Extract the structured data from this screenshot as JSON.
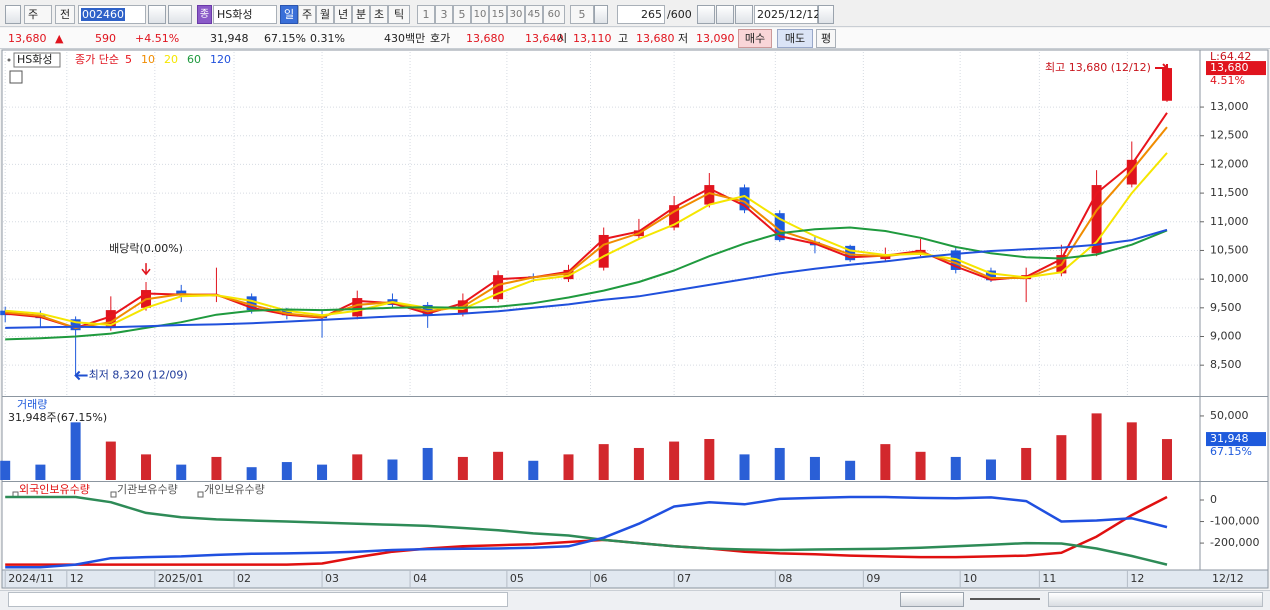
{
  "toolbar": {
    "period_type": "주",
    "prev": "전",
    "code": "002460",
    "stock_icon": "종",
    "name": "HS화성",
    "periods": [
      "일",
      "주",
      "월",
      "년",
      "분",
      "초",
      "틱"
    ],
    "intervals": [
      "1",
      "3",
      "5",
      "10",
      "15",
      "30",
      "45",
      "60"
    ],
    "interval_custom": "5",
    "count": "265",
    "max_count": "/600",
    "date": "2025/12/12"
  },
  "quote": {
    "price": "13,680",
    "arrow": "▲",
    "change": "590",
    "change_rate": "+4.51%",
    "volume": "31,948",
    "volume_ratio": "67.15%",
    "turnover": "0.31%",
    "amount": "430백만",
    "bid_ask_label": "호가",
    "ask": "13,680",
    "bid": "13,640",
    "open_label": "시",
    "open": "13,110",
    "high_label": "고",
    "high": "13,680",
    "low_label": "저",
    "low": "13,090",
    "buy": "매수",
    "sell": "매도",
    "avg": "평"
  },
  "chart_data": [
    {
      "type": "candlestick",
      "title": "HS화성",
      "subtitle": "종가 단순",
      "up_color": "#e0141e",
      "down_color": "#1e5adc",
      "x": [
        0,
        8,
        16,
        24,
        32,
        40,
        48,
        56,
        64,
        72,
        80,
        88,
        96,
        104,
        112,
        120,
        128,
        136,
        144,
        152,
        160,
        168,
        176,
        184,
        192,
        200,
        208,
        216,
        224,
        232,
        240,
        248,
        256,
        264
      ],
      "open": [
        9450,
        9370,
        9300,
        9150,
        9500,
        9800,
        9700,
        9700,
        9450,
        9380,
        9350,
        9650,
        9550,
        9400,
        9650,
        10050,
        10000,
        10200,
        10750,
        10900,
        11300,
        11600,
        11150,
        10650,
        10580,
        10350,
        10450,
        10500,
        10150,
        10000,
        10100,
        10450,
        11650,
        13110
      ],
      "high": [
        9520,
        9450,
        9350,
        9700,
        9950,
        9900,
        10200,
        9750,
        9500,
        9450,
        9800,
        9750,
        9600,
        9750,
        10150,
        10100,
        10250,
        10900,
        11050,
        11450,
        11850,
        11650,
        11200,
        10750,
        10600,
        10550,
        10700,
        10550,
        10200,
        10200,
        10600,
        11900,
        12400,
        13680
      ],
      "low": [
        9250,
        9150,
        8320,
        9100,
        9450,
        9600,
        9600,
        9400,
        9300,
        8980,
        9300,
        9500,
        9150,
        9350,
        9600,
        9950,
        9950,
        10150,
        10700,
        10850,
        11250,
        11150,
        10650,
        10450,
        10300,
        10300,
        10400,
        10100,
        9950,
        9600,
        10050,
        10400,
        11600,
        13090
      ],
      "close": [
        9372,
        9320,
        9110,
        9460,
        9810,
        9720,
        9720,
        9460,
        9370,
        9320,
        9670,
        9550,
        9370,
        9630,
        10070,
        10020,
        10160,
        10770,
        10850,
        11290,
        11640,
        11200,
        10680,
        10590,
        10330,
        10420,
        10510,
        10160,
        9980,
        10070,
        10420,
        11640,
        12080,
        13680
      ],
      "series": [
        {
          "name": "5",
          "color": "#e8141c",
          "values": [
            9400,
            9340,
            9150,
            9350,
            9750,
            9730,
            9730,
            9500,
            9380,
            9330,
            9620,
            9580,
            9400,
            9580,
            10000,
            10030,
            10130,
            10700,
            10830,
            11250,
            11580,
            11280,
            10750,
            10620,
            10380,
            10410,
            10490,
            10220,
            9990,
            10040,
            10350,
            11500,
            12000,
            12900
          ]
        },
        {
          "name": "10",
          "color": "#f08c00",
          "values": [
            9420,
            9360,
            9150,
            9250,
            9650,
            9740,
            9720,
            9550,
            9400,
            9340,
            9550,
            9600,
            9440,
            9520,
            9900,
            10030,
            10100,
            10600,
            10800,
            11180,
            11500,
            11350,
            10850,
            10650,
            10430,
            10400,
            10470,
            10280,
            10020,
            10020,
            10250,
            11200,
            11900,
            12650
          ]
        },
        {
          "name": "20",
          "color": "#f5e600",
          "values": [
            9450,
            9400,
            9250,
            9200,
            9500,
            9700,
            9720,
            9620,
            9450,
            9370,
            9450,
            9600,
            9500,
            9480,
            9750,
            9980,
            10060,
            10400,
            10700,
            10950,
            11300,
            11450,
            11050,
            10750,
            10500,
            10420,
            10440,
            10350,
            10100,
            10030,
            10120,
            10650,
            11500,
            12200
          ]
        },
        {
          "name": "60",
          "color": "#1f9a3e",
          "values": [
            8950,
            8970,
            9000,
            9050,
            9150,
            9250,
            9380,
            9450,
            9470,
            9460,
            9480,
            9500,
            9510,
            9500,
            9520,
            9580,
            9680,
            9800,
            9950,
            10150,
            10400,
            10620,
            10800,
            10870,
            10900,
            10840,
            10720,
            10560,
            10450,
            10380,
            10360,
            10430,
            10600,
            10850
          ]
        },
        {
          "name": "120",
          "color": "#2050dc",
          "values": [
            9150,
            9160,
            9170,
            9160,
            9180,
            9200,
            9210,
            9230,
            9260,
            9290,
            9320,
            9350,
            9370,
            9400,
            9440,
            9500,
            9560,
            9640,
            9700,
            9800,
            9900,
            10000,
            10100,
            10180,
            10250,
            10310,
            10380,
            10440,
            10490,
            10520,
            10550,
            10600,
            10680,
            10860
          ]
        }
      ],
      "xlim": [
        -0.5,
        271.5
      ],
      "xticks": [
        {
          "value": 0,
          "label": "2024/11"
        },
        {
          "value": 14,
          "label": "12"
        },
        {
          "value": 34,
          "label": "2025/01"
        },
        {
          "value": 52,
          "label": "02"
        },
        {
          "value": 72,
          "label": "03"
        },
        {
          "value": 92,
          "label": "04"
        },
        {
          "value": 114,
          "label": "05"
        },
        {
          "value": 133,
          "label": "06"
        },
        {
          "value": 152,
          "label": "07"
        },
        {
          "value": 175,
          "label": "08"
        },
        {
          "value": 195,
          "label": "09"
        },
        {
          "value": 217,
          "label": "10"
        },
        {
          "value": 235,
          "label": "11"
        },
        {
          "value": 255,
          "label": "12"
        }
      ],
      "last_date_label": "12/12",
      "ylim": [
        7980,
        13960
      ],
      "yticks": [
        {
          "value": 8500,
          "label": "8,500"
        },
        {
          "value": 9000,
          "label": "9,000"
        },
        {
          "value": 9500,
          "label": "9,500"
        },
        {
          "value": 10000,
          "label": "10,000"
        },
        {
          "value": 10500,
          "label": "10,500"
        },
        {
          "value": 11000,
          "label": "11,000"
        },
        {
          "value": 11500,
          "label": "11,500"
        },
        {
          "value": 12000,
          "label": "12,000"
        },
        {
          "value": 12500,
          "label": "12,500"
        },
        {
          "value": 13000,
          "label": "13,000"
        }
      ],
      "grid": true,
      "top_label": "L:64.42",
      "last_price_label": "13,680",
      "last_change_label": "4.51%",
      "annotations": [
        {
          "text": "배당락(0.00%)",
          "x": 32,
          "y": 10000
        },
        {
          "text": "최저 8,320 (12/09)",
          "x": 16,
          "y": 8320
        },
        {
          "text": "최고 13,680 (12/12)",
          "x": 264,
          "y": 13680
        }
      ]
    },
    {
      "type": "bar",
      "title": "거래량",
      "subtitle": "31,948주(67.15%)",
      "up_color": "#d2282d",
      "down_color": "#2a5fd6",
      "x": [
        0,
        8,
        16,
        24,
        32,
        40,
        48,
        56,
        64,
        72,
        80,
        88,
        96,
        104,
        112,
        120,
        128,
        136,
        144,
        152,
        160,
        168,
        176,
        184,
        192,
        200,
        208,
        216,
        224,
        232,
        240,
        248,
        256,
        264
      ],
      "values": [
        15000,
        12000,
        45000,
        30000,
        20000,
        12000,
        18000,
        10000,
        14000,
        12000,
        20000,
        16000,
        25000,
        18000,
        22000,
        15000,
        20000,
        28000,
        25000,
        30000,
        32000,
        20000,
        25000,
        18000,
        15000,
        28000,
        22000,
        18000,
        16000,
        25000,
        35000,
        52000,
        45000,
        31948
      ],
      "xlim": [
        -0.5,
        271.5
      ],
      "ylim": [
        0,
        64000
      ],
      "yticks": [
        {
          "value": 50000,
          "label": "50,000"
        }
      ],
      "last_value_label": "31,948",
      "last_ratio_label": "67.15%"
    },
    {
      "type": "line",
      "x": [
        0,
        8,
        16,
        24,
        32,
        40,
        48,
        56,
        64,
        72,
        80,
        88,
        96,
        104,
        112,
        120,
        128,
        136,
        144,
        152,
        160,
        168,
        176,
        184,
        192,
        200,
        208,
        216,
        224,
        232,
        240,
        248,
        256,
        264
      ],
      "series": [
        {
          "name": "외국인보유수량",
          "color": "#e01010",
          "values": [
            -300000,
            -300000,
            -300000,
            -300000,
            -300000,
            -300000,
            -300000,
            -300000,
            -300000,
            -295000,
            -265000,
            -240000,
            -225000,
            -215000,
            -210000,
            -205000,
            -195000,
            -185000,
            -200000,
            -215000,
            -225000,
            -240000,
            -248000,
            -252000,
            -258000,
            -262000,
            -265000,
            -265000,
            -262000,
            -258000,
            -245000,
            -170000,
            -70000,
            14000
          ]
        },
        {
          "name": "기관보유수량",
          "color": "#2e8b57",
          "values": [
            14000,
            14000,
            14000,
            -10000,
            -60000,
            -80000,
            -90000,
            -95000,
            -100000,
            -105000,
            -110000,
            -115000,
            -120000,
            -130000,
            -140000,
            -155000,
            -165000,
            -185000,
            -200000,
            -215000,
            -225000,
            -230000,
            -232000,
            -230000,
            -228000,
            -226000,
            -222000,
            -215000,
            -208000,
            -200000,
            -202000,
            -225000,
            -260000,
            -300000
          ]
        },
        {
          "name": "개인보유수량",
          "color": "#2050e0",
          "values": [
            -312000,
            -312000,
            -300000,
            -270000,
            -265000,
            -262000,
            -255000,
            -250000,
            -248000,
            -245000,
            -240000,
            -232000,
            -228000,
            -226000,
            -225000,
            -222000,
            -215000,
            -175000,
            -110000,
            -30000,
            -10000,
            -20000,
            5000,
            10000,
            14000,
            14000,
            10000,
            8000,
            12000,
            -5000,
            -100000,
            -95000,
            -85000,
            -126000
          ]
        }
      ],
      "xlim": [
        -0.5,
        271.5
      ],
      "ylim": [
        -325000,
        79000
      ],
      "yticks": [
        0,
        {
          "value": -100000,
          "label": "-100,000"
        },
        {
          "value": -200000,
          "label": "-200,000"
        }
      ]
    }
  ]
}
